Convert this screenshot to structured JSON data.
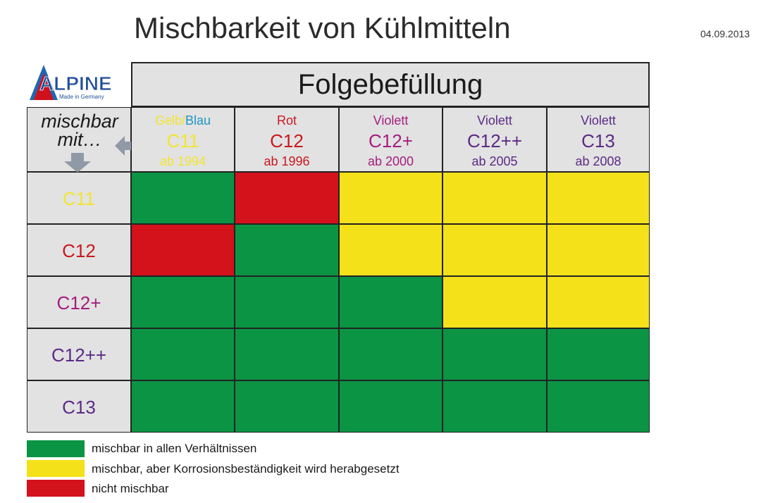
{
  "title": "Mischbarkeit von Kühlmitteln",
  "date": "04.09.2013",
  "logo": {
    "text": "ALPINE",
    "sub": "Made in Germany"
  },
  "colors": {
    "green": "#0b9444",
    "yellow": "#f4e11a",
    "red": "#d3121b",
    "header_bg": "#e2e2e2",
    "c11": "#f2e530",
    "c12": "#c8181e",
    "violet": "#a51d7e",
    "purple": "#5b2a86",
    "blau": "#1d95c4",
    "arrow": "#8f9aa6"
  },
  "header": {
    "title": "Folgebefüllung",
    "corner_line1": "mischbar",
    "corner_line2": "mit…"
  },
  "chart_data": {
    "type": "table",
    "title": "Mischbarkeit von Kühlmitteln",
    "column_group": "Folgebefüllung",
    "corner_label": "mischbar mit…",
    "columns": [
      {
        "color_name_a": "Gelb/",
        "color_name_b": "Blau",
        "code": "C11",
        "since": "ab 1994"
      },
      {
        "color_name_a": "Rot",
        "color_name_b": "",
        "code": "C12",
        "since": "ab 1996"
      },
      {
        "color_name_a": "Violett",
        "color_name_b": "",
        "code": "C12+",
        "since": "ab 2000"
      },
      {
        "color_name_a": "Violett",
        "color_name_b": "",
        "code": "C12++",
        "since": "ab 2005"
      },
      {
        "color_name_a": "Violett",
        "color_name_b": "",
        "code": "C13",
        "since": "ab 2008"
      }
    ],
    "rows": [
      "C11",
      "C12",
      "C12+",
      "C12++",
      "C13"
    ],
    "matrix": [
      [
        "green",
        "red",
        "yellow",
        "yellow",
        "yellow"
      ],
      [
        "red",
        "green",
        "yellow",
        "yellow",
        "yellow"
      ],
      [
        "green",
        "green",
        "green",
        "yellow",
        "yellow"
      ],
      [
        "green",
        "green",
        "green",
        "green",
        "green"
      ],
      [
        "green",
        "green",
        "green",
        "green",
        "green"
      ]
    ],
    "legend": [
      {
        "key": "green",
        "label": "mischbar in allen Verhältnissen"
      },
      {
        "key": "yellow",
        "label": "mischbar, aber Korrosionsbeständigkeit wird herabgesetzt"
      },
      {
        "key": "red",
        "label": "nicht mischbar"
      }
    ]
  }
}
